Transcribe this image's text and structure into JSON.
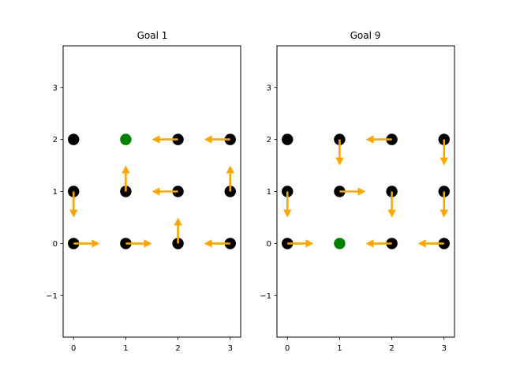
{
  "colors": {
    "background": "#ffffff",
    "frame": "#000000",
    "state_marker": "#000000",
    "goal_marker": "#008000",
    "arrow": "#ffa500"
  },
  "chart_data": [
    {
      "type": "scatter",
      "title": "Goal 1",
      "xlim": [
        -0.2,
        3.2
      ],
      "ylim": [
        -1.8,
        3.8
      ],
      "xticks": [
        0,
        1,
        2,
        3
      ],
      "yticks": [
        -1,
        0,
        1,
        2,
        3
      ],
      "xtick_labels": [
        "0",
        "1",
        "2",
        "3"
      ],
      "ytick_labels": [
        "−1",
        "0",
        "1",
        "2",
        "3"
      ],
      "goal": [
        1,
        2
      ],
      "states": [
        {
          "x": 0,
          "y": 2,
          "dx": 0,
          "dy": 0
        },
        {
          "x": 1,
          "y": 2,
          "dx": 0,
          "dy": 0,
          "goal": true
        },
        {
          "x": 2,
          "y": 2,
          "dx": -0.5,
          "dy": 0
        },
        {
          "x": 3,
          "y": 2,
          "dx": -0.5,
          "dy": 0
        },
        {
          "x": 0,
          "y": 1,
          "dx": 0,
          "dy": -0.5
        },
        {
          "x": 1,
          "y": 1,
          "dx": 0,
          "dy": 0.5
        },
        {
          "x": 2,
          "y": 1,
          "dx": -0.5,
          "dy": 0
        },
        {
          "x": 3,
          "y": 1,
          "dx": 0,
          "dy": 0.5
        },
        {
          "x": 0,
          "y": 0,
          "dx": 0.5,
          "dy": 0
        },
        {
          "x": 1,
          "y": 0,
          "dx": 0.5,
          "dy": 0
        },
        {
          "x": 2,
          "y": 0,
          "dx": 0,
          "dy": 0.5
        },
        {
          "x": 3,
          "y": 0,
          "dx": -0.5,
          "dy": 0
        }
      ]
    },
    {
      "type": "scatter",
      "title": "Goal 9",
      "xlim": [
        -0.2,
        3.2
      ],
      "ylim": [
        -1.8,
        3.8
      ],
      "xticks": [
        0,
        1,
        2,
        3
      ],
      "yticks": [
        -1,
        0,
        1,
        2,
        3
      ],
      "xtick_labels": [
        "0",
        "1",
        "2",
        "3"
      ],
      "ytick_labels": [
        "−1",
        "0",
        "1",
        "2",
        "3"
      ],
      "goal": [
        1,
        0
      ],
      "states": [
        {
          "x": 0,
          "y": 2,
          "dx": 0,
          "dy": 0
        },
        {
          "x": 1,
          "y": 2,
          "dx": 0,
          "dy": -0.5
        },
        {
          "x": 2,
          "y": 2,
          "dx": -0.5,
          "dy": 0
        },
        {
          "x": 3,
          "y": 2,
          "dx": 0,
          "dy": -0.5
        },
        {
          "x": 0,
          "y": 1,
          "dx": 0,
          "dy": -0.5
        },
        {
          "x": 1,
          "y": 1,
          "dx": 0.5,
          "dy": 0
        },
        {
          "x": 2,
          "y": 1,
          "dx": 0,
          "dy": -0.5
        },
        {
          "x": 3,
          "y": 1,
          "dx": 0,
          "dy": -0.5
        },
        {
          "x": 0,
          "y": 0,
          "dx": 0.5,
          "dy": 0
        },
        {
          "x": 1,
          "y": 0,
          "dx": 0,
          "dy": 0,
          "goal": true
        },
        {
          "x": 2,
          "y": 0,
          "dx": -0.5,
          "dy": 0
        },
        {
          "x": 3,
          "y": 0,
          "dx": -0.5,
          "dy": 0
        }
      ]
    }
  ]
}
